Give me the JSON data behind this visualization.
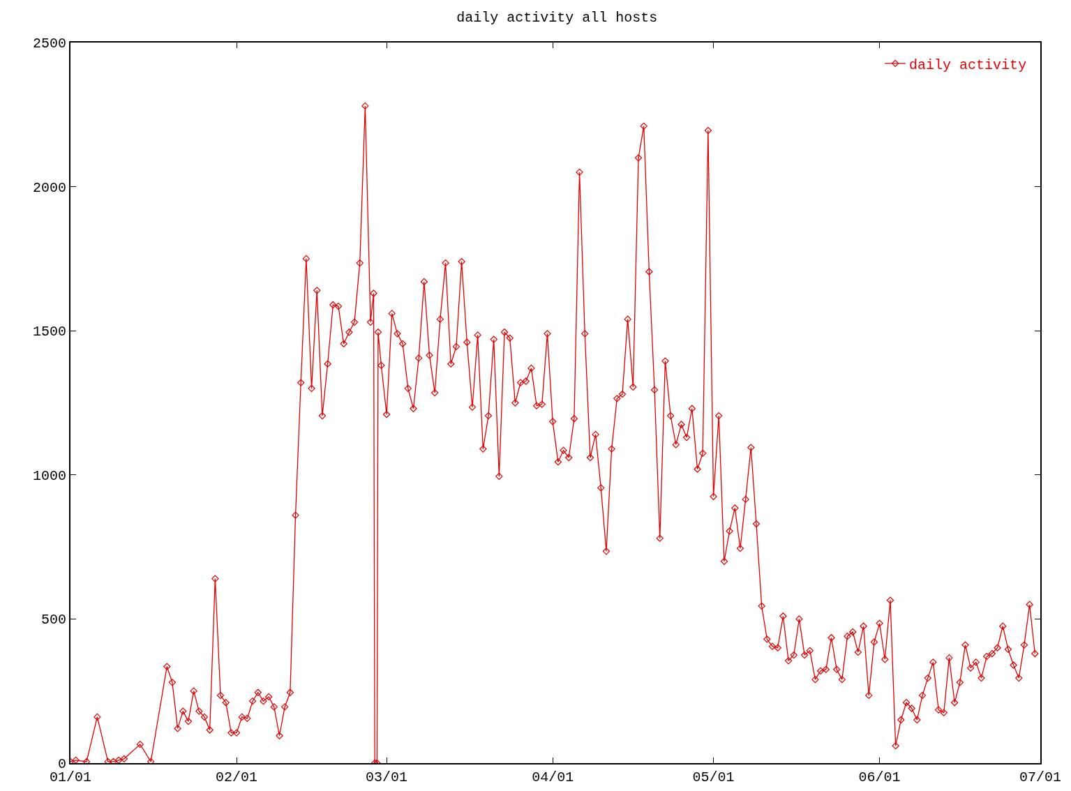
{
  "chart_data": {
    "type": "line",
    "title": "daily activity all hosts",
    "xlim": [
      "--01-01",
      "--07-01"
    ],
    "xticks": [
      {
        "value": "--01-01",
        "label": "01/01"
      },
      {
        "value": "--02-01",
        "label": "02/01"
      },
      {
        "value": "--03-01",
        "label": "03/01"
      },
      {
        "value": "--04-01",
        "label": "04/01"
      },
      {
        "value": "--05-01",
        "label": "05/01"
      },
      {
        "value": "--06-01",
        "label": "06/01"
      },
      {
        "value": "--07-01",
        "label": "07/01"
      }
    ],
    "ylim": [
      0,
      2500
    ],
    "yticks": [
      0,
      500,
      1000,
      1500,
      2000,
      2500
    ],
    "grid": false,
    "legend": "top right",
    "marker": "diamond",
    "line_style": "solid",
    "series": [
      {
        "name": "daily activity",
        "color": "#e00000",
        "x": [
          "--01-01",
          "--01-02",
          "--01-04",
          "--01-06",
          "--01-08",
          "--01-09",
          "--01-10",
          "--01-11",
          "--01-14",
          "--01-16",
          "--01-19",
          "--01-20",
          "--01-21",
          "--01-22",
          "--01-23",
          "--01-24",
          "--01-25",
          "--01-26",
          "--01-27",
          "--01-28",
          "--01-29",
          "--01-30",
          "--01-31",
          "--02-01",
          "--02-02",
          "--02-03",
          "--02-04",
          "--02-05",
          "--02-06",
          "--02-07",
          "--02-08",
          "--02-09",
          "--02-10",
          "--02-11",
          "--02-12",
          "--02-13",
          "--02-14",
          "--02-15",
          "--02-16",
          "--02-17",
          "--02-18",
          "--02-19",
          "--02-20",
          "--02-21",
          "--02-22",
          "--02-23",
          "--02-24",
          "--02-25",
          "--02-26",
          "--02-26T14:00",
          "--02-26T19:00",
          "--02-27T05:00",
          "--02-27T10:00",
          "--02-28",
          "--03-01",
          "--03-02",
          "--03-03",
          "--03-04",
          "--03-05",
          "--03-06",
          "--03-07",
          "--03-08",
          "--03-09",
          "--03-10",
          "--03-11",
          "--03-12",
          "--03-13",
          "--03-14",
          "--03-15",
          "--03-16",
          "--03-17",
          "--03-18",
          "--03-19",
          "--03-20",
          "--03-21",
          "--03-22",
          "--03-23",
          "--03-24",
          "--03-25",
          "--03-26",
          "--03-27",
          "--03-28",
          "--03-29",
          "--03-30",
          "--03-31",
          "--04-01",
          "--04-02",
          "--04-03",
          "--04-04",
          "--04-05",
          "--04-06",
          "--04-07",
          "--04-08",
          "--04-09",
          "--04-10",
          "--04-11",
          "--04-12",
          "--04-13",
          "--04-14",
          "--04-15",
          "--04-16",
          "--04-17",
          "--04-18",
          "--04-19",
          "--04-20",
          "--04-21",
          "--04-22",
          "--04-23",
          "--04-24",
          "--04-25",
          "--04-26",
          "--04-27",
          "--04-28",
          "--04-29",
          "--04-30",
          "--05-01",
          "--05-02",
          "--05-03",
          "--05-04",
          "--05-05",
          "--05-06",
          "--05-07",
          "--05-08",
          "--05-09",
          "--05-10",
          "--05-11",
          "--05-12",
          "--05-13",
          "--05-14",
          "--05-15",
          "--05-16",
          "--05-17",
          "--05-18",
          "--05-19",
          "--05-20",
          "--05-21",
          "--05-22",
          "--05-23",
          "--05-24",
          "--05-25",
          "--05-26",
          "--05-27",
          "--05-28",
          "--05-29",
          "--05-30",
          "--05-31",
          "--06-01",
          "--06-02",
          "--06-03",
          "--06-04",
          "--06-05",
          "--06-06",
          "--06-07",
          "--06-08",
          "--06-09",
          "--06-10",
          "--06-11",
          "--06-12",
          "--06-13",
          "--06-14",
          "--06-15",
          "--06-16",
          "--06-17",
          "--06-18",
          "--06-19",
          "--06-20",
          "--06-21",
          "--06-22",
          "--06-23",
          "--06-24",
          "--06-25",
          "--06-26",
          "--06-27",
          "--06-28",
          "--06-29",
          "--06-30"
        ],
        "values": [
          5,
          10,
          5,
          160,
          5,
          5,
          10,
          15,
          65,
          5,
          335,
          280,
          120,
          180,
          145,
          250,
          180,
          160,
          115,
          640,
          235,
          210,
          105,
          105,
          160,
          155,
          215,
          245,
          215,
          230,
          195,
          95,
          195,
          245,
          860,
          1320,
          1750,
          1300,
          1640,
          1205,
          1385,
          1590,
          1585,
          1455,
          1495,
          1530,
          1735,
          2280,
          1530,
          1630,
          0,
          0,
          1495,
          1380,
          1210,
          1560,
          1490,
          1455,
          1300,
          1230,
          1405,
          1670,
          1415,
          1285,
          1540,
          1735,
          1385,
          1445,
          1740,
          1460,
          1235,
          1485,
          1090,
          1205,
          1470,
          995,
          1495,
          1475,
          1250,
          1320,
          1325,
          1370,
          1240,
          1245,
          1490,
          1185,
          1045,
          1085,
          1060,
          1195,
          2050,
          1490,
          1060,
          1140,
          955,
          735,
          1090,
          1265,
          1280,
          1540,
          1305,
          2100,
          2210,
          1705,
          1295,
          780,
          1395,
          1205,
          1105,
          1175,
          1130,
          1230,
          1020,
          1075,
          2195,
          925,
          1205,
          700,
          805,
          885,
          745,
          915,
          1095,
          830,
          545,
          430,
          405,
          400,
          510,
          355,
          375,
          500,
          375,
          390,
          290,
          320,
          325,
          435,
          325,
          290,
          440,
          455,
          385,
          475,
          235,
          420,
          485,
          360,
          565,
          60,
          150,
          210,
          190,
          150,
          235,
          295,
          350,
          185,
          175,
          365,
          210,
          280,
          410,
          330,
          350,
          295,
          370,
          380,
          400,
          475,
          395,
          340,
          295,
          410,
          550,
          380
        ]
      }
    ]
  }
}
